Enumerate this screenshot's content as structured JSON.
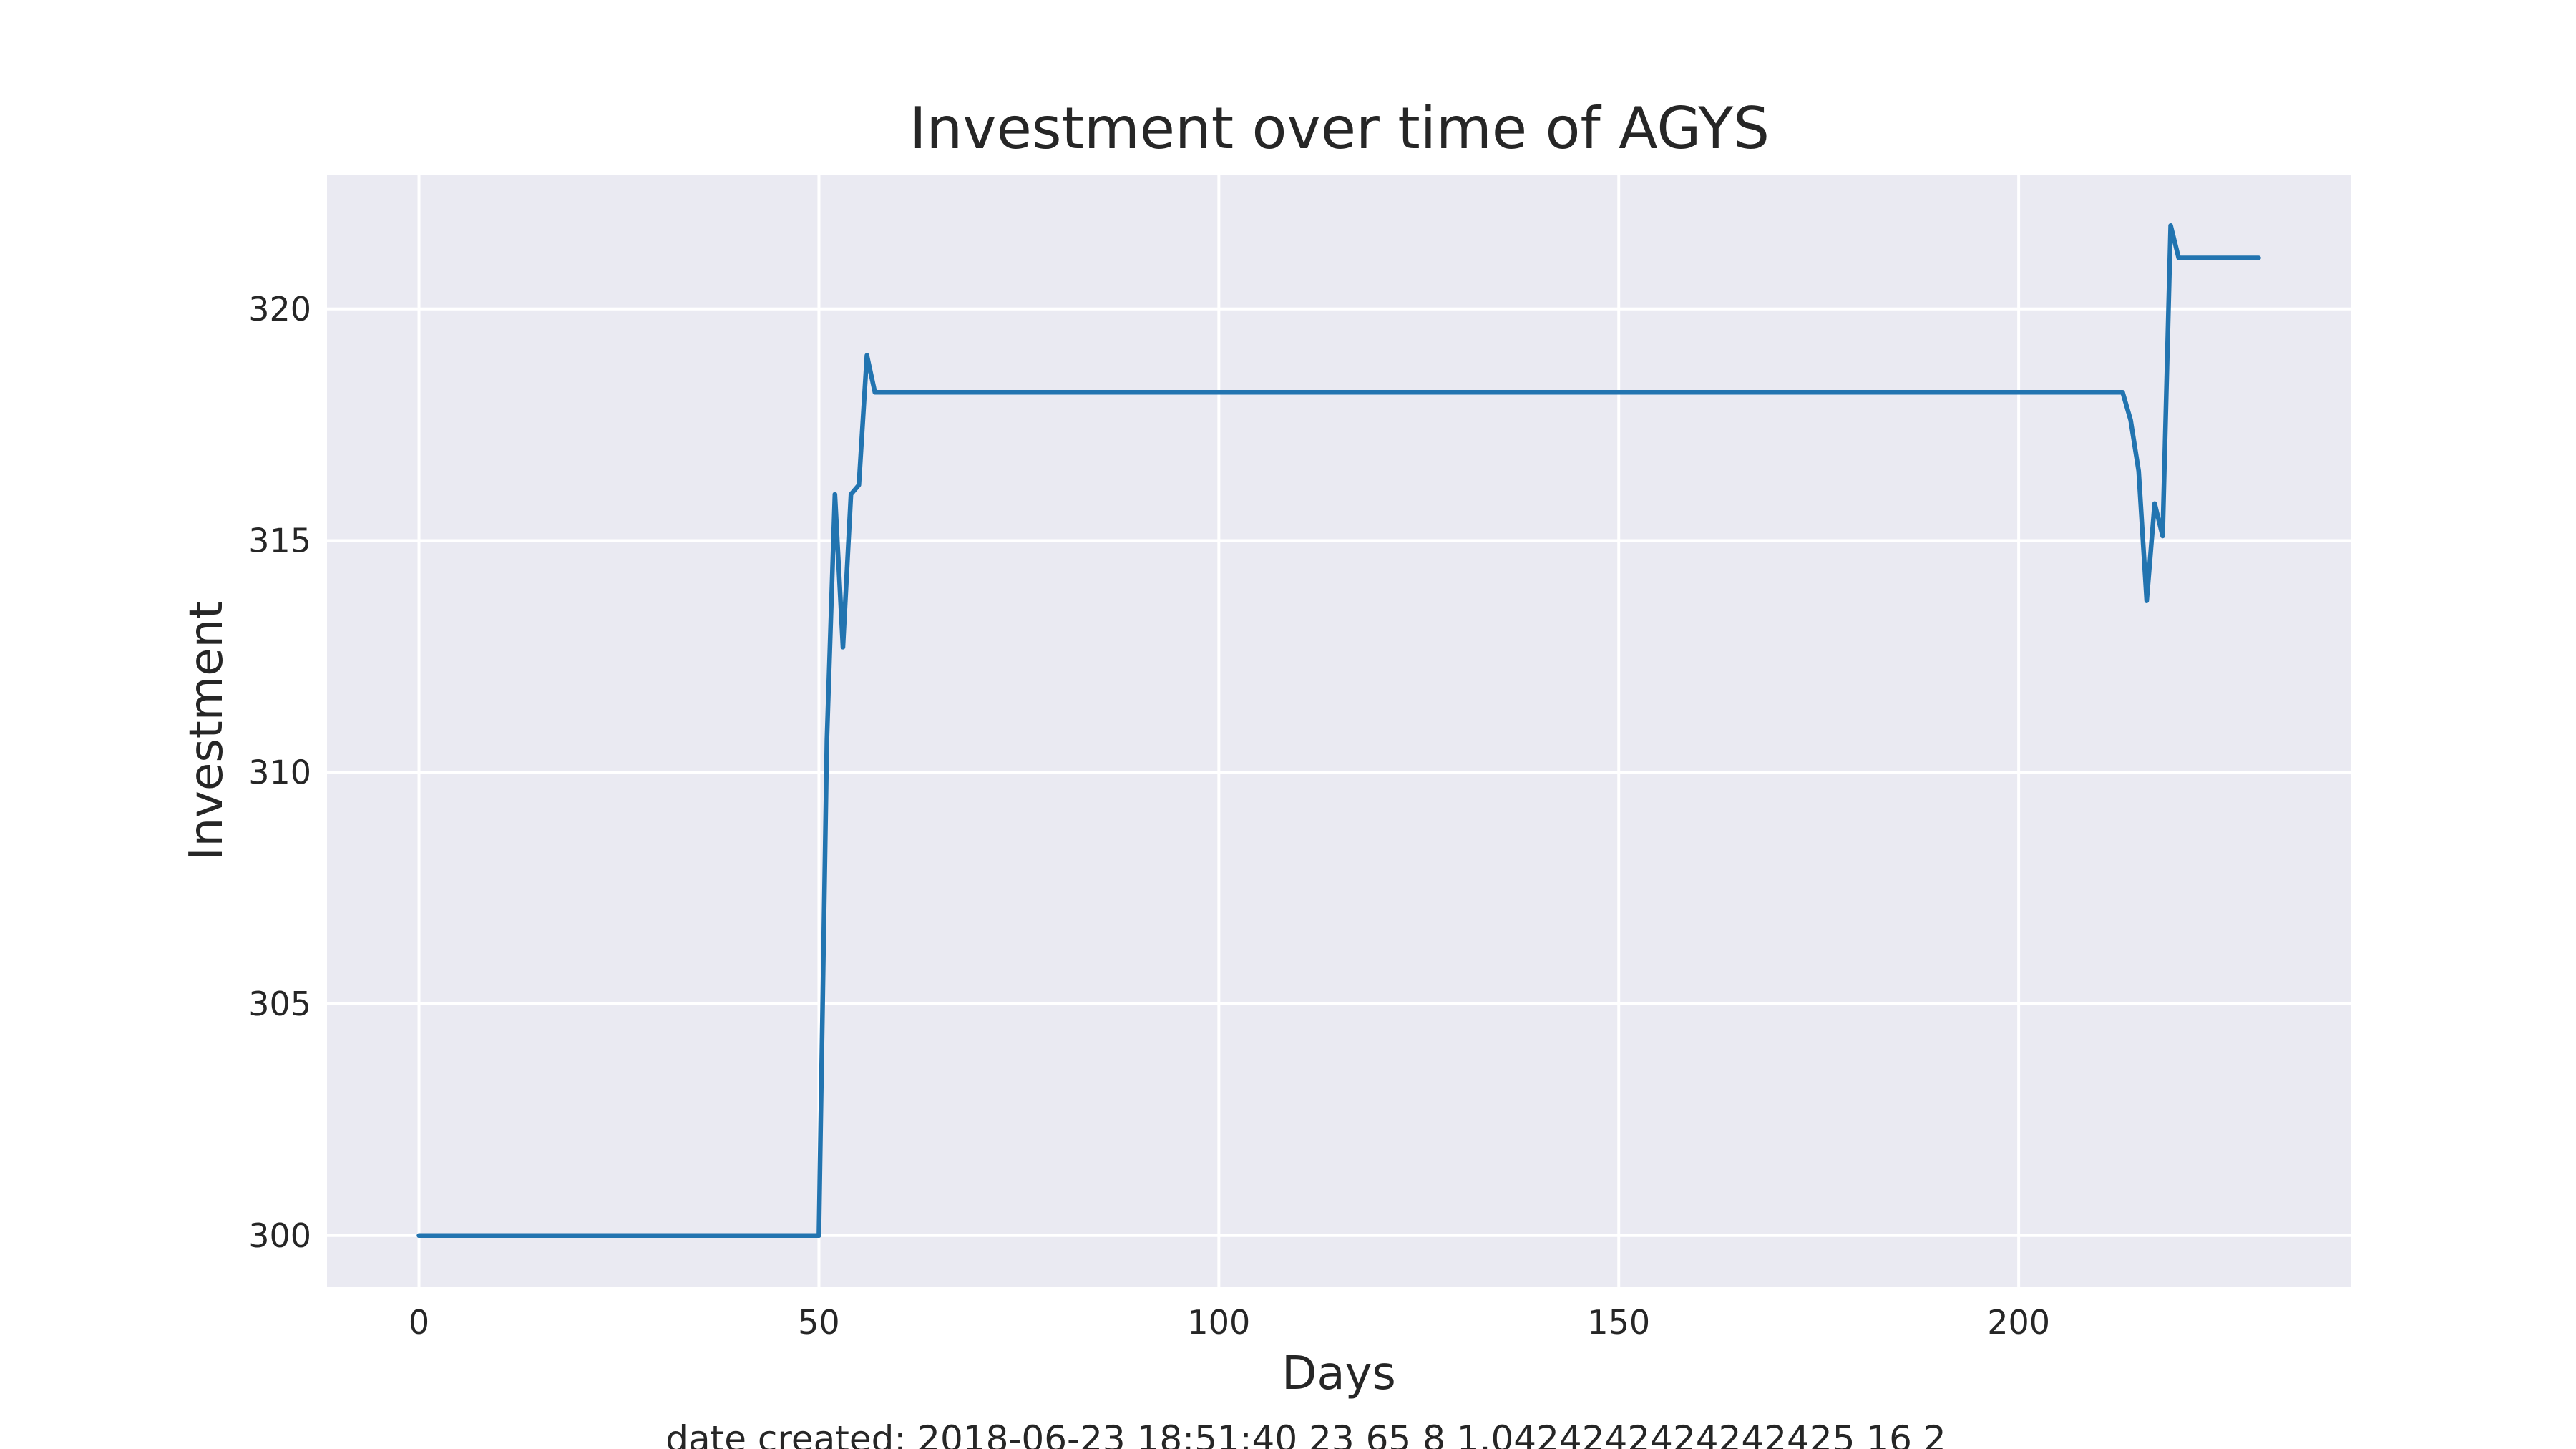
{
  "chart_data": {
    "type": "line",
    "title": "Investment over time of AGYS",
    "xlabel": "Days",
    "ylabel": "Investment",
    "caption": "date created: 2018-06-23 18:51:40 23 65 8 1.0424242424242425 16 2",
    "xlim": [
      -11.5,
      241.5
    ],
    "ylim": [
      298.9,
      322.9
    ],
    "xticks": [
      0,
      50,
      100,
      150,
      200
    ],
    "yticks": [
      300,
      305,
      310,
      315,
      320
    ],
    "grid": true,
    "legend": "none",
    "colors": {
      "background": "#eaeaf2",
      "grid": "#ffffff",
      "series": "#2274b0"
    },
    "series": [
      {
        "color": "#2274b0",
        "points": [
          [
            0,
            300.0
          ],
          [
            50,
            300.0
          ],
          [
            51,
            310.7
          ],
          [
            52,
            316.0
          ],
          [
            53,
            312.7
          ],
          [
            54,
            316.0
          ],
          [
            55,
            316.2
          ],
          [
            56,
            319.0
          ],
          [
            57,
            318.2
          ],
          [
            213,
            318.2
          ],
          [
            214,
            317.6
          ],
          [
            215,
            316.5
          ],
          [
            216,
            313.7
          ],
          [
            217,
            315.8
          ],
          [
            218,
            315.1
          ],
          [
            219,
            321.8
          ],
          [
            220,
            321.1
          ],
          [
            230,
            321.1
          ]
        ]
      }
    ]
  }
}
